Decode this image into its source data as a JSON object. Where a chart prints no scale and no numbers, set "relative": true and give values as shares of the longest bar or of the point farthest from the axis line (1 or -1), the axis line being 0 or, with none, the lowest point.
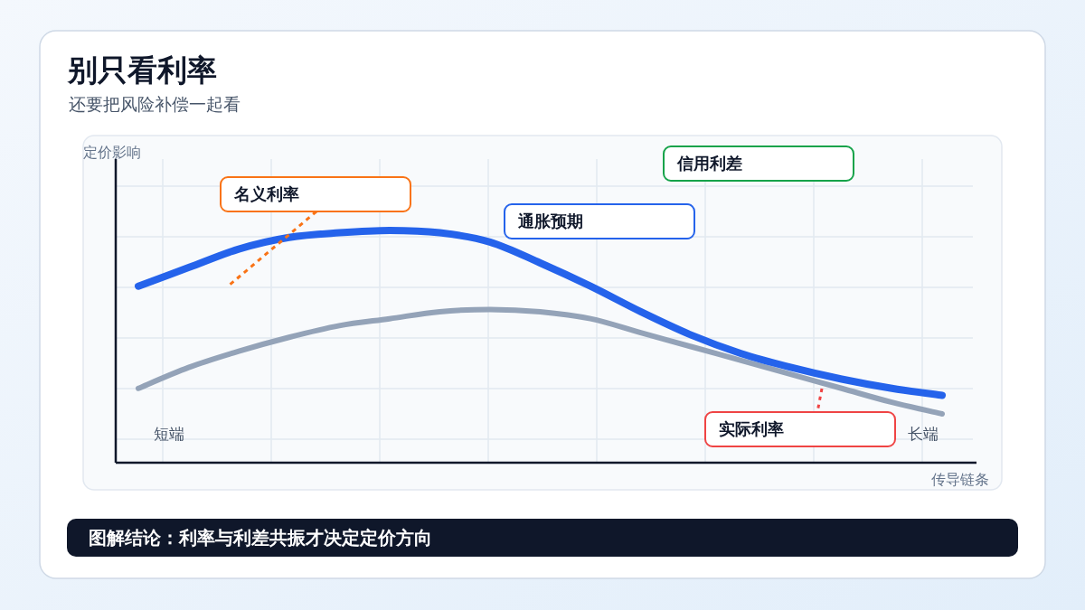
{
  "chart_data": {
    "type": "line",
    "title": "别只看利率",
    "subtitle": "还要把风险补偿一起看",
    "xlabel": "传导链条",
    "categories": [
      null,
      null,
      null,
      null,
      null,
      null,
      null,
      null,
      null,
      null,
      null,
      null,
      null,
      null,
      null,
      null,
      null
    ],
    "relative": true,
    "series": [
      {
        "color": "#2563eb",
        "values": [
          0.76,
          0.84,
          0.92,
          0.97,
          0.99,
          1.0,
          0.99,
          0.95,
          0.86,
          0.76,
          0.65,
          0.55,
          0.47,
          0.41,
          0.36,
          0.32,
          0.29
        ]
      },
      {
        "color": "#94a3b8",
        "values": [
          0.32,
          0.41,
          0.48,
          0.54,
          0.59,
          0.62,
          0.65,
          0.66,
          0.65,
          0.62,
          0.56,
          0.5,
          0.44,
          0.38,
          0.32,
          0.26,
          0.21
        ]
      }
    ],
    "annotations": [
      "定价影响",
      "名义利率",
      "通胀预期",
      "信用利差",
      "实际利率",
      "短端",
      "长端",
      "图解结论：利率与利差共振才决定定价方向"
    ],
    "grid": true
  }
}
